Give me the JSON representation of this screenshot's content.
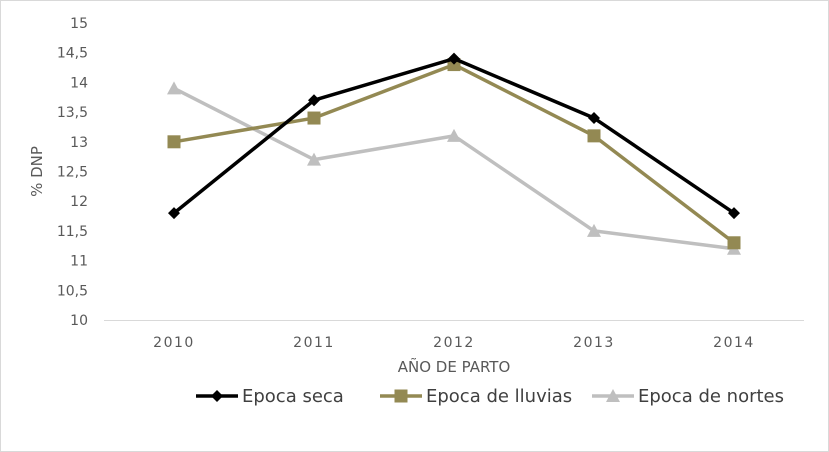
{
  "chart_data": {
    "type": "line",
    "title": "",
    "xlabel": "AÑO DE PARTO",
    "ylabel": "% DNP",
    "categories": [
      "2010",
      "2011",
      "2012",
      "2013",
      "2014"
    ],
    "ylim": [
      10,
      15
    ],
    "yticks": [
      "10",
      "10,5",
      "11",
      "11,5",
      "12",
      "12,5",
      "13",
      "13,5",
      "14",
      "14,5",
      "15"
    ],
    "grid": false,
    "legend_position": "bottom",
    "series": [
      {
        "name": "Epoca seca",
        "values": [
          11.8,
          13.7,
          14.4,
          13.4,
          11.8
        ],
        "color": "#000000",
        "marker": "diamond"
      },
      {
        "name": "Epoca de lluvias",
        "values": [
          13.0,
          13.4,
          14.3,
          13.1,
          11.3
        ],
        "color": "#938953",
        "marker": "square"
      },
      {
        "name": "Epoca de nortes",
        "values": [
          13.9,
          12.7,
          13.1,
          11.5,
          11.2
        ],
        "color": "#bfbfbf",
        "marker": "triangle"
      }
    ]
  }
}
